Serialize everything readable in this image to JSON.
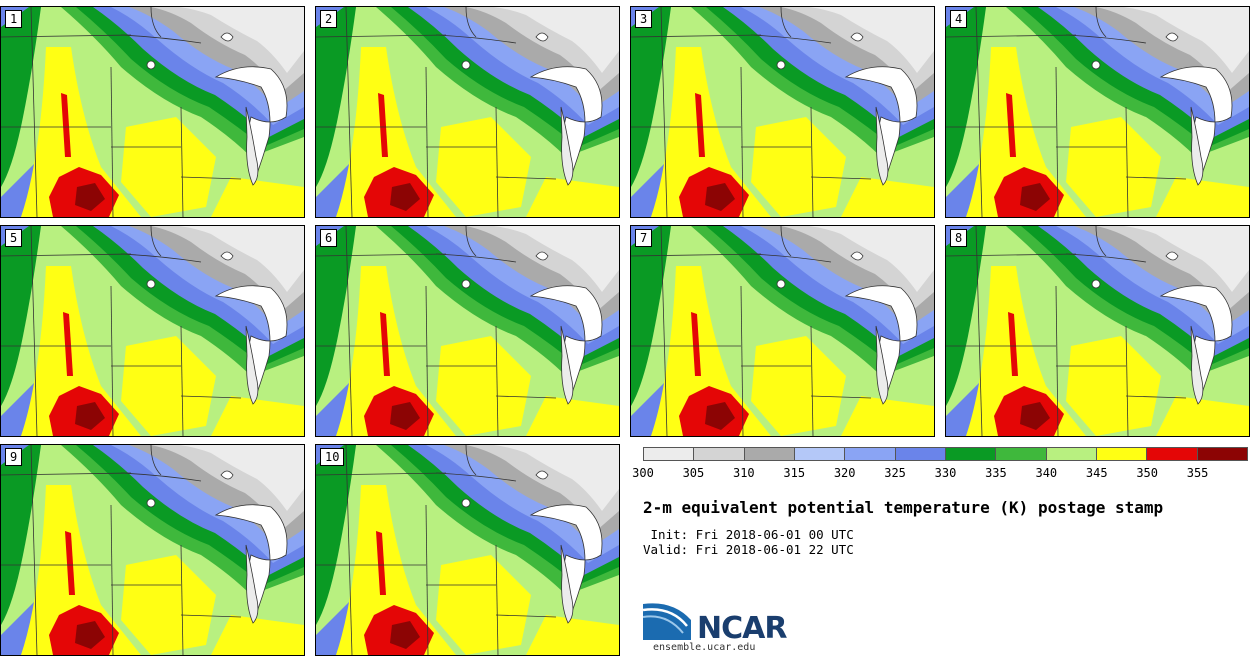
{
  "members": [
    "1",
    "2",
    "3",
    "4",
    "5",
    "6",
    "7",
    "8",
    "9",
    "10"
  ],
  "legend": {
    "colors": [
      "#ececec",
      "#d4d4d4",
      "#aaaaaa",
      "#b4c8f8",
      "#8aa4f4",
      "#6a84ea",
      "#0a9a24",
      "#3fb83c",
      "#b8f080",
      "#ffff14",
      "#e40606",
      "#8c0404"
    ],
    "ticks": [
      "300",
      "305",
      "310",
      "315",
      "320",
      "325",
      "330",
      "335",
      "340",
      "345",
      "350",
      "355"
    ]
  },
  "title": "2-m equivalent potential temperature (K) postage stamp",
  "init": " Init: Fri 2018-06-01 00 UTC",
  "valid": "Valid: Fri 2018-06-01 22 UTC",
  "logo": {
    "text": "NCAR",
    "site": "ensemble.ucar.edu"
  }
}
